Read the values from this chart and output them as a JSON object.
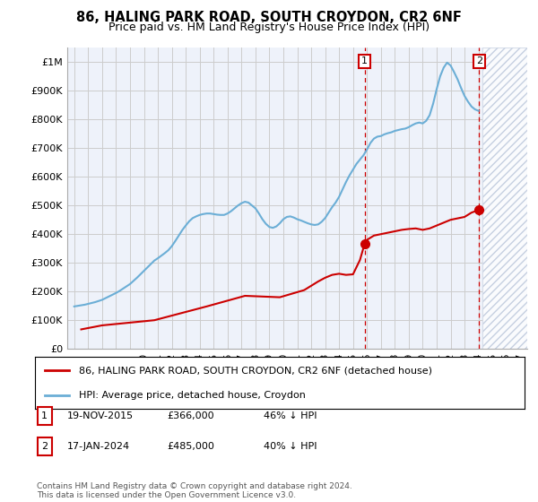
{
  "title": "86, HALING PARK ROAD, SOUTH CROYDON, CR2 6NF",
  "subtitle": "Price paid vs. HM Land Registry's House Price Index (HPI)",
  "hpi_label": "HPI: Average price, detached house, Croydon",
  "property_label": "86, HALING PARK ROAD, SOUTH CROYDON, CR2 6NF (detached house)",
  "footnote": "Contains HM Land Registry data © Crown copyright and database right 2024.\nThis data is licensed under the Open Government Licence v3.0.",
  "transaction1": {
    "label": "1",
    "date": "19-NOV-2015",
    "price": "£366,000",
    "note": "46% ↓ HPI"
  },
  "transaction2": {
    "label": "2",
    "date": "17-JAN-2024",
    "price": "£485,000",
    "note": "40% ↓ HPI"
  },
  "hpi_color": "#6baed6",
  "property_color": "#cc0000",
  "background_color": "#ffffff",
  "plot_bg_color": "#eef2fa",
  "hatch_color": "#b8c4d8",
  "grid_color": "#cccccc",
  "vline_color": "#cc0000",
  "annotation_box_color": "#cc0000",
  "xlim_start": 1994.5,
  "xlim_end": 2027.5,
  "ylim_min": 0,
  "ylim_max": 1050000,
  "yticks": [
    0,
    100000,
    200000,
    300000,
    400000,
    500000,
    600000,
    700000,
    800000,
    900000,
    1000000
  ],
  "ytick_labels": [
    "£0",
    "£100K",
    "£200K",
    "£300K",
    "£400K",
    "£500K",
    "£600K",
    "£700K",
    "£800K",
    "£900K",
    "£1M"
  ],
  "hpi_x": [
    1995.0,
    1995.25,
    1995.5,
    1995.75,
    1996.0,
    1996.25,
    1996.5,
    1996.75,
    1997.0,
    1997.25,
    1997.5,
    1997.75,
    1998.0,
    1998.25,
    1998.5,
    1998.75,
    1999.0,
    1999.25,
    1999.5,
    1999.75,
    2000.0,
    2000.25,
    2000.5,
    2000.75,
    2001.0,
    2001.25,
    2001.5,
    2001.75,
    2002.0,
    2002.25,
    2002.5,
    2002.75,
    2003.0,
    2003.25,
    2003.5,
    2003.75,
    2004.0,
    2004.25,
    2004.5,
    2004.75,
    2005.0,
    2005.25,
    2005.5,
    2005.75,
    2006.0,
    2006.25,
    2006.5,
    2006.75,
    2007.0,
    2007.25,
    2007.5,
    2007.75,
    2008.0,
    2008.25,
    2008.5,
    2008.75,
    2009.0,
    2009.25,
    2009.5,
    2009.75,
    2010.0,
    2010.25,
    2010.5,
    2010.75,
    2011.0,
    2011.25,
    2011.5,
    2011.75,
    2012.0,
    2012.25,
    2012.5,
    2012.75,
    2013.0,
    2013.25,
    2013.5,
    2013.75,
    2014.0,
    2014.25,
    2014.5,
    2014.75,
    2015.0,
    2015.25,
    2015.5,
    2015.75,
    2016.0,
    2016.25,
    2016.5,
    2016.75,
    2017.0,
    2017.25,
    2017.5,
    2017.75,
    2018.0,
    2018.25,
    2018.5,
    2018.75,
    2019.0,
    2019.25,
    2019.5,
    2019.75,
    2020.0,
    2020.25,
    2020.5,
    2020.75,
    2021.0,
    2021.25,
    2021.5,
    2021.75,
    2022.0,
    2022.25,
    2022.5,
    2022.75,
    2023.0,
    2023.25,
    2023.5,
    2023.75,
    2024.0
  ],
  "hpi_y": [
    148000,
    150000,
    152000,
    154000,
    157000,
    160000,
    163000,
    167000,
    171000,
    177000,
    183000,
    189000,
    195000,
    202000,
    210000,
    218000,
    226000,
    237000,
    248000,
    260000,
    272000,
    284000,
    296000,
    308000,
    316000,
    325000,
    334000,
    344000,
    358000,
    376000,
    395000,
    414000,
    430000,
    445000,
    456000,
    462000,
    467000,
    470000,
    472000,
    472000,
    470000,
    468000,
    467000,
    467000,
    472000,
    480000,
    490000,
    500000,
    508000,
    513000,
    510000,
    500000,
    490000,
    472000,
    452000,
    436000,
    425000,
    422000,
    427000,
    438000,
    452000,
    460000,
    462000,
    458000,
    452000,
    448000,
    443000,
    438000,
    434000,
    432000,
    434000,
    443000,
    456000,
    475000,
    494000,
    510000,
    530000,
    556000,
    582000,
    605000,
    625000,
    645000,
    660000,
    675000,
    695000,
    718000,
    733000,
    740000,
    742000,
    748000,
    752000,
    755000,
    760000,
    763000,
    766000,
    768000,
    773000,
    780000,
    786000,
    789000,
    786000,
    795000,
    815000,
    855000,
    905000,
    950000,
    980000,
    998000,
    988000,
    965000,
    940000,
    910000,
    882000,
    862000,
    845000,
    835000,
    830000
  ],
  "property_x": [
    1995.5,
    1997.0,
    2000.75,
    2004.5,
    2007.25,
    2009.75,
    2011.5,
    2012.0,
    2012.5,
    2013.0,
    2013.5,
    2014.0,
    2014.5,
    2015.0,
    2015.5,
    2015.83,
    2016.0,
    2016.5,
    2017.0,
    2017.5,
    2018.0,
    2018.5,
    2019.0,
    2019.5,
    2020.0,
    2020.5,
    2021.0,
    2021.5,
    2022.0,
    2022.5,
    2023.0,
    2023.5,
    2024.05
  ],
  "property_y": [
    68000,
    82000,
    100000,
    148000,
    185000,
    180000,
    205000,
    220000,
    235000,
    248000,
    258000,
    262000,
    258000,
    260000,
    310000,
    366000,
    380000,
    395000,
    400000,
    405000,
    410000,
    415000,
    418000,
    420000,
    415000,
    420000,
    430000,
    440000,
    450000,
    455000,
    460000,
    475000,
    485000
  ],
  "sale1_x": 2015.83,
  "sale1_y": 366000,
  "sale2_x": 2024.05,
  "sale2_y": 485000,
  "vline1_x": 2015.83,
  "vline2_x": 2024.05,
  "hatch_start": 2024.3,
  "hatch_end": 2027.5
}
